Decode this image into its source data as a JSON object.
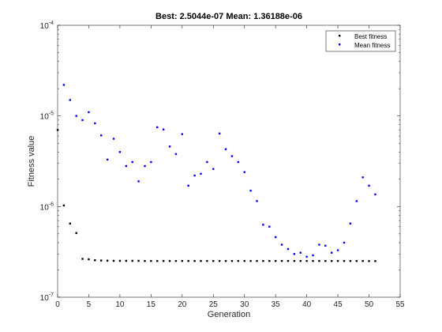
{
  "chart_data": {
    "type": "scatter",
    "title": "Best: 2.5044e-07 Mean: 1.36188e-06",
    "xlabel": "Generation",
    "ylabel": "Fitness value",
    "xlim": [
      0,
      55
    ],
    "ylim": [
      1e-07,
      0.0001
    ],
    "yscale": "log",
    "grid": false,
    "legend_position": "top-right",
    "x_ticks": [
      0,
      5,
      10,
      15,
      20,
      25,
      30,
      35,
      40,
      45,
      50,
      55
    ],
    "y_ticks": [
      {
        "value": 1e-07,
        "base": "10",
        "exp": "-7"
      },
      {
        "value": 1e-06,
        "base": "10",
        "exp": "-6"
      },
      {
        "value": 1e-05,
        "base": "10",
        "exp": "-5"
      },
      {
        "value": 0.0001,
        "base": "10",
        "exp": "-4"
      }
    ],
    "series": [
      {
        "name": "Best fitness",
        "color": "#000000",
        "x": [
          0,
          1,
          2,
          3,
          4,
          5,
          6,
          7,
          8,
          9,
          10,
          11,
          12,
          13,
          14,
          15,
          16,
          17,
          18,
          19,
          20,
          21,
          22,
          23,
          24,
          25,
          26,
          27,
          28,
          29,
          30,
          31,
          32,
          33,
          34,
          35,
          36,
          37,
          38,
          39,
          40,
          41,
          42,
          43,
          44,
          45,
          46,
          47,
          48,
          49,
          50,
          51
        ],
        "y": [
          7e-06,
          1.03e-06,
          6.5e-07,
          5.1e-07,
          2.65e-07,
          2.62e-07,
          2.56e-07,
          2.54e-07,
          2.53e-07,
          2.52e-07,
          2.52e-07,
          2.52e-07,
          2.52e-07,
          2.52e-07,
          2.51e-07,
          2.51e-07,
          2.51e-07,
          2.51e-07,
          2.51e-07,
          2.51e-07,
          2.51e-07,
          2.51e-07,
          2.51e-07,
          2.51e-07,
          2.51e-07,
          2.51e-07,
          2.51e-07,
          2.51e-07,
          2.51e-07,
          2.51e-07,
          2.51e-07,
          2.51e-07,
          2.51e-07,
          2.51e-07,
          2.51e-07,
          2.51e-07,
          2.51e-07,
          2.51e-07,
          2.51e-07,
          2.51e-07,
          2.51e-07,
          2.51e-07,
          2.51e-07,
          2.51e-07,
          2.51e-07,
          2.51e-07,
          2.51e-07,
          2.51e-07,
          2.51e-07,
          2.51e-07,
          2.5044e-07,
          2.5044e-07
        ]
      },
      {
        "name": "Mean fitness",
        "color": "#0000ff",
        "x": [
          1,
          2,
          3,
          4,
          5,
          6,
          7,
          8,
          9,
          10,
          11,
          12,
          13,
          14,
          15,
          16,
          17,
          18,
          19,
          20,
          21,
          22,
          23,
          24,
          25,
          26,
          27,
          28,
          29,
          30,
          31,
          32,
          33,
          34,
          35,
          36,
          37,
          38,
          39,
          40,
          41,
          42,
          43,
          44,
          45,
          46,
          47,
          48,
          49,
          50,
          51
        ],
        "y": [
          2.2e-05,
          1.5e-05,
          1e-05,
          9e-06,
          1.1e-05,
          8.3e-06,
          6.1e-06,
          3.3e-06,
          5.6e-06,
          4e-06,
          2.8e-06,
          3.1e-06,
          1.9e-06,
          2.8e-06,
          3.1e-06,
          7.5e-06,
          7.1e-06,
          4.6e-06,
          3.8e-06,
          6.3e-06,
          1.7e-06,
          2.2e-06,
          2.3e-06,
          3.1e-06,
          2.6e-06,
          6.4e-06,
          4.3e-06,
          3.6e-06,
          3.1e-06,
          2.4e-06,
          1.5e-06,
          1.15e-06,
          6.3e-07,
          6e-07,
          4.6e-07,
          3.8e-07,
          3.4e-07,
          3e-07,
          3.1e-07,
          2.8e-07,
          2.9e-07,
          3.8e-07,
          3.7e-07,
          3.1e-07,
          3.3e-07,
          4e-07,
          6.5e-07,
          1.15e-06,
          2.1e-06,
          1.7e-06,
          1.36188e-06
        ]
      }
    ]
  }
}
